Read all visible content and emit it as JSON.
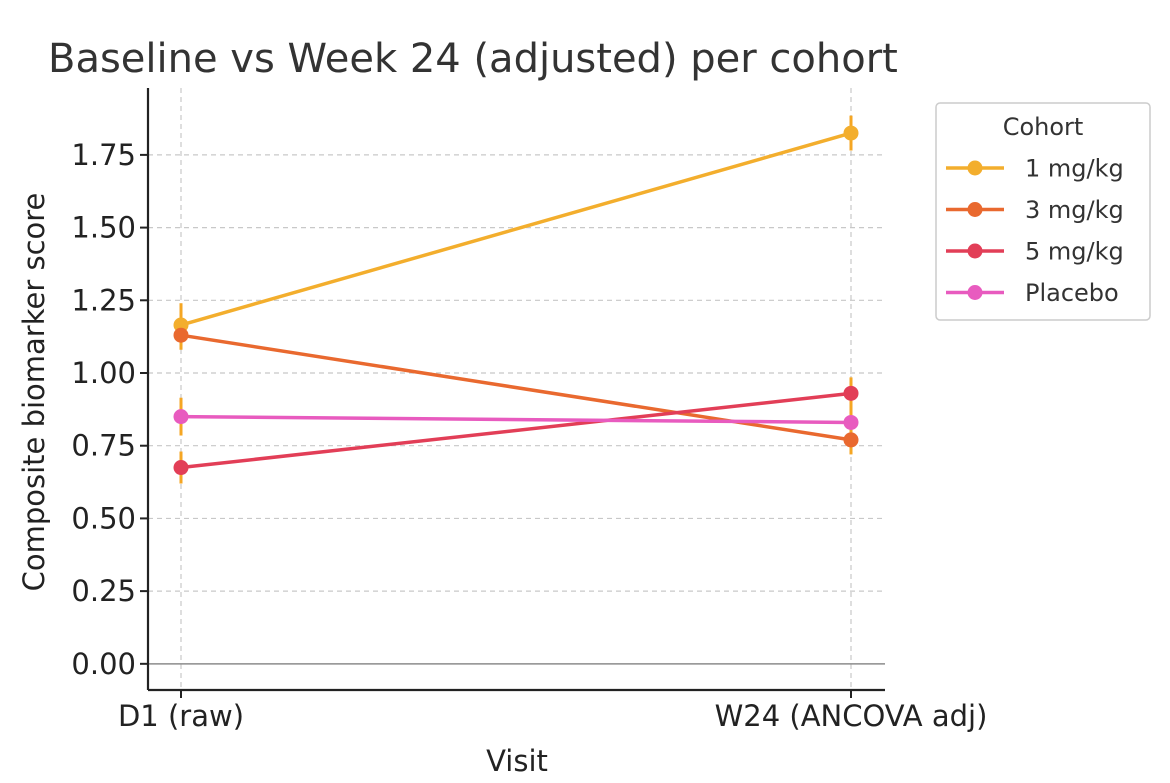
{
  "chart_data": {
    "type": "line",
    "title": "Baseline vs Week 24 (adjusted) per cohort",
    "xlabel": "Visit",
    "ylabel": "Composite biomarker score",
    "categories": [
      "D1 (raw)",
      "W24 (ANCOVA adj)"
    ],
    "ylim": [
      -0.09,
      1.98
    ],
    "yticks": [
      0.0,
      0.25,
      0.5,
      0.75,
      1.0,
      1.25,
      1.5,
      1.75
    ],
    "ytick_labels": [
      "0.00",
      "0.25",
      "0.50",
      "0.75",
      "1.00",
      "1.25",
      "1.50",
      "1.75"
    ],
    "grid": true,
    "legend": {
      "title": "Cohort",
      "placement": "outside-top-right"
    },
    "error_bar_color": "#f5a623",
    "series": [
      {
        "name": "1 mg/kg",
        "color": "#f3ae2d",
        "values": [
          1.165,
          1.825
        ],
        "errors": [
          0.075,
          0.06
        ]
      },
      {
        "name": "3 mg/kg",
        "color": "#e9692f",
        "values": [
          1.13,
          0.77
        ],
        "errors": [
          0.05,
          0.05
        ]
      },
      {
        "name": "5 mg/kg",
        "color": "#e23e57",
        "values": [
          0.675,
          0.93
        ],
        "errors": [
          0.055,
          0.055
        ]
      },
      {
        "name": "Placebo",
        "color": "#e85bbf",
        "values": [
          0.85,
          0.83
        ],
        "errors": [
          0.065,
          0.05
        ]
      }
    ]
  }
}
